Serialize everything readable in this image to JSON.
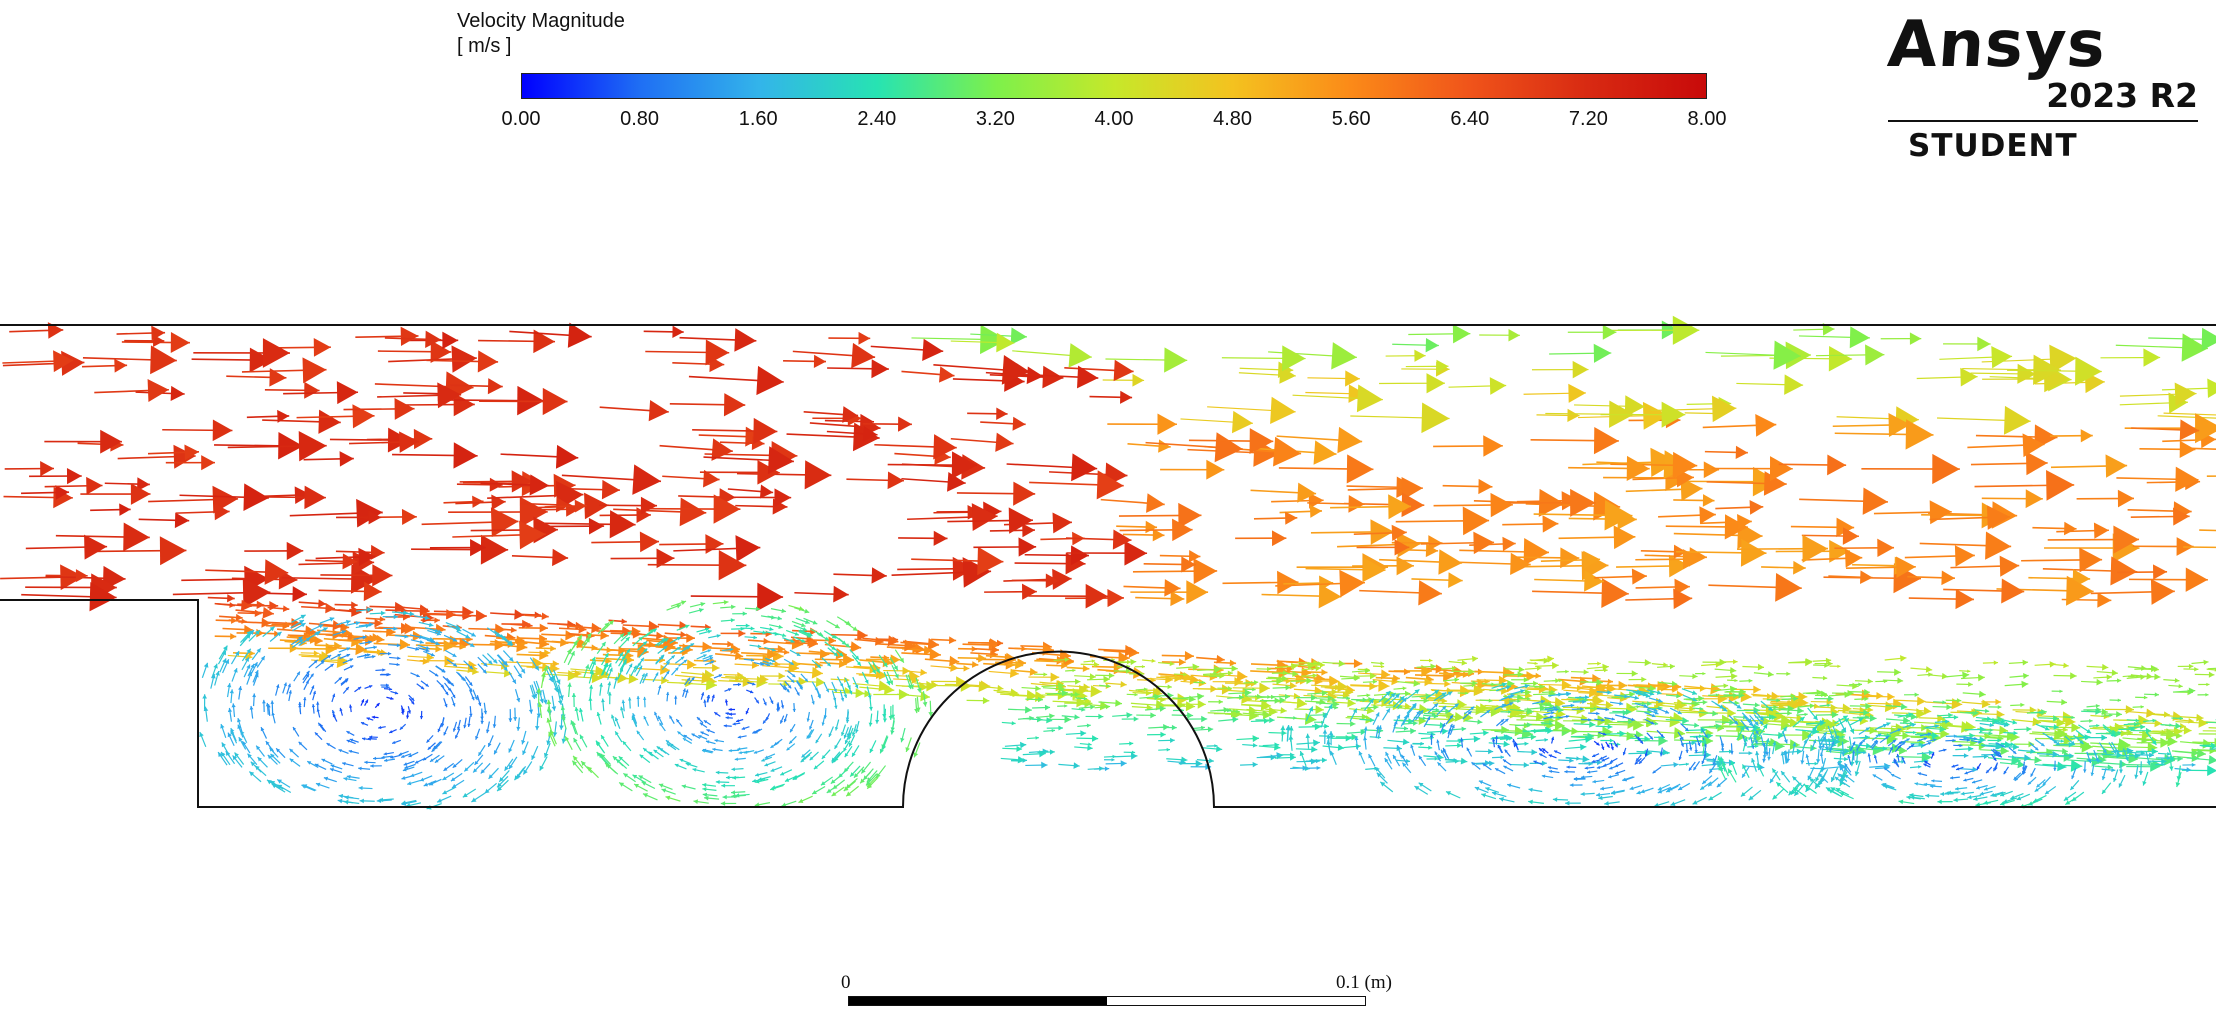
{
  "legend": {
    "title": "Velocity Magnitude",
    "unit": "[ m/s ]",
    "ticks": [
      "0.00",
      "0.80",
      "1.60",
      "2.40",
      "3.20",
      "4.00",
      "4.80",
      "5.60",
      "6.40",
      "7.20",
      "8.00"
    ],
    "colormap": [
      "#0000ff",
      "#1f6ff4",
      "#33b4ea",
      "#27e3b2",
      "#7df04b",
      "#c6e82a",
      "#f4c21f",
      "#fb8a18",
      "#f0541a",
      "#d82a12",
      "#c80a0a"
    ]
  },
  "logo": {
    "word": "Ansys",
    "version": "2023 R2",
    "edition": "STUDENT"
  },
  "scale_bar": {
    "left_label": "0",
    "right_label": "0.1 (m)"
  },
  "field": {
    "vmin": 0,
    "vmax": 8,
    "outline_color": "#111111"
  }
}
